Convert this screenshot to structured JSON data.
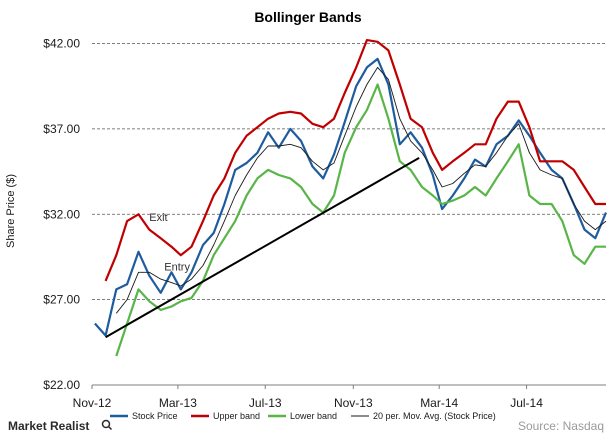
{
  "chart_data": {
    "type": "line",
    "title": "Bollinger Bands",
    "ylabel": "Share Price ($)",
    "xlabel": "",
    "ylim": [
      22,
      42.5
    ],
    "yticks": [
      22,
      27,
      32,
      37,
      42
    ],
    "ytick_labels": [
      "$22.00",
      "$27.00",
      "$32.00",
      "$37.00",
      "$42.00"
    ],
    "grid": true,
    "x_tick_labels": [
      {
        "label": "Nov-12",
        "date": "2012-11-01"
      },
      {
        "label": "Mar-13",
        "date": "2013-03-01"
      },
      {
        "label": "Jul-13",
        "date": "2013-07-01"
      },
      {
        "label": "Nov-13",
        "date": "2013-11-01"
      },
      {
        "label": "Mar-14",
        "date": "2014-03-01"
      },
      {
        "label": "Jul-14",
        "date": "2014-07-01"
      }
    ],
    "x_range": [
      "2012-11-01",
      "2014-10-20"
    ],
    "series": [
      {
        "name": "Stock Price",
        "color": "#1f5c9e",
        "points": [
          [
            "2012-11-05",
            25.6
          ],
          [
            "2012-11-20",
            24.9
          ],
          [
            "2012-12-05",
            27.6
          ],
          [
            "2012-12-20",
            27.9
          ],
          [
            "2013-01-05",
            29.8
          ],
          [
            "2013-01-20",
            28.4
          ],
          [
            "2013-02-05",
            27.4
          ],
          [
            "2013-02-20",
            28.6
          ],
          [
            "2013-03-05",
            27.6
          ],
          [
            "2013-03-20",
            28.6
          ],
          [
            "2013-04-05",
            30.2
          ],
          [
            "2013-04-20",
            30.9
          ],
          [
            "2013-05-05",
            32.6
          ],
          [
            "2013-05-20",
            34.6
          ],
          [
            "2013-06-05",
            35.0
          ],
          [
            "2013-06-20",
            35.6
          ],
          [
            "2013-07-05",
            36.8
          ],
          [
            "2013-07-20",
            35.9
          ],
          [
            "2013-08-05",
            37.0
          ],
          [
            "2013-08-20",
            36.3
          ],
          [
            "2013-09-05",
            34.8
          ],
          [
            "2013-09-20",
            34.1
          ],
          [
            "2013-10-05",
            35.5
          ],
          [
            "2013-10-20",
            37.4
          ],
          [
            "2013-11-05",
            39.5
          ],
          [
            "2013-11-20",
            40.6
          ],
          [
            "2013-12-05",
            41.1
          ],
          [
            "2013-12-20",
            39.6
          ],
          [
            "2014-01-05",
            36.1
          ],
          [
            "2014-01-20",
            36.8
          ],
          [
            "2014-02-05",
            35.9
          ],
          [
            "2014-02-20",
            34.3
          ],
          [
            "2014-03-05",
            32.3
          ],
          [
            "2014-03-20",
            33.1
          ],
          [
            "2014-04-05",
            34.1
          ],
          [
            "2014-04-20",
            35.2
          ],
          [
            "2014-05-05",
            34.8
          ],
          [
            "2014-05-20",
            36.1
          ],
          [
            "2014-06-05",
            36.6
          ],
          [
            "2014-06-20",
            37.5
          ],
          [
            "2014-07-05",
            36.6
          ],
          [
            "2014-07-20",
            35.6
          ],
          [
            "2014-08-05",
            34.6
          ],
          [
            "2014-08-20",
            34.1
          ],
          [
            "2014-09-05",
            32.6
          ],
          [
            "2014-09-20",
            31.1
          ],
          [
            "2014-10-05",
            30.6
          ],
          [
            "2014-10-20",
            32.1
          ]
        ]
      },
      {
        "name": "Upper band",
        "color": "#c00000",
        "points": [
          [
            "2012-11-20",
            28.1
          ],
          [
            "2012-12-05",
            29.6
          ],
          [
            "2012-12-20",
            31.6
          ],
          [
            "2013-01-05",
            32.0
          ],
          [
            "2013-01-20",
            31.1
          ],
          [
            "2013-02-05",
            30.6
          ],
          [
            "2013-02-20",
            30.1
          ],
          [
            "2013-03-05",
            29.6
          ],
          [
            "2013-03-20",
            30.1
          ],
          [
            "2013-04-05",
            31.6
          ],
          [
            "2013-04-20",
            33.1
          ],
          [
            "2013-05-05",
            34.1
          ],
          [
            "2013-05-20",
            35.6
          ],
          [
            "2013-06-05",
            36.6
          ],
          [
            "2013-06-20",
            37.1
          ],
          [
            "2013-07-05",
            37.6
          ],
          [
            "2013-07-20",
            37.9
          ],
          [
            "2013-08-05",
            38.0
          ],
          [
            "2013-08-20",
            37.9
          ],
          [
            "2013-09-05",
            37.3
          ],
          [
            "2013-09-20",
            37.1
          ],
          [
            "2013-10-05",
            37.6
          ],
          [
            "2013-10-20",
            39.1
          ],
          [
            "2013-11-05",
            40.6
          ],
          [
            "2013-11-20",
            42.2
          ],
          [
            "2013-12-05",
            42.1
          ],
          [
            "2013-12-20",
            41.6
          ],
          [
            "2014-01-05",
            39.6
          ],
          [
            "2014-01-20",
            37.6
          ],
          [
            "2014-02-05",
            37.1
          ],
          [
            "2014-02-20",
            35.6
          ],
          [
            "2014-03-05",
            34.6
          ],
          [
            "2014-03-20",
            35.1
          ],
          [
            "2014-04-05",
            35.6
          ],
          [
            "2014-04-20",
            36.1
          ],
          [
            "2014-05-05",
            36.1
          ],
          [
            "2014-05-20",
            37.6
          ],
          [
            "2014-06-05",
            38.6
          ],
          [
            "2014-06-20",
            38.6
          ],
          [
            "2014-07-05",
            37.1
          ],
          [
            "2014-07-20",
            35.1
          ],
          [
            "2014-08-05",
            35.1
          ],
          [
            "2014-08-20",
            35.1
          ],
          [
            "2014-09-05",
            34.6
          ],
          [
            "2014-09-20",
            33.6
          ],
          [
            "2014-10-05",
            32.6
          ],
          [
            "2014-10-20",
            32.6
          ]
        ]
      },
      {
        "name": "Lower band",
        "color": "#58b548",
        "points": [
          [
            "2012-12-05",
            23.7
          ],
          [
            "2012-12-20",
            25.6
          ],
          [
            "2013-01-05",
            27.6
          ],
          [
            "2013-01-20",
            26.9
          ],
          [
            "2013-02-05",
            26.4
          ],
          [
            "2013-02-20",
            26.6
          ],
          [
            "2013-03-05",
            26.9
          ],
          [
            "2013-03-20",
            27.1
          ],
          [
            "2013-04-05",
            28.1
          ],
          [
            "2013-04-20",
            29.6
          ],
          [
            "2013-05-05",
            30.6
          ],
          [
            "2013-05-20",
            31.6
          ],
          [
            "2013-06-05",
            33.1
          ],
          [
            "2013-06-20",
            34.1
          ],
          [
            "2013-07-05",
            34.6
          ],
          [
            "2013-07-20",
            34.3
          ],
          [
            "2013-08-05",
            34.1
          ],
          [
            "2013-08-20",
            33.6
          ],
          [
            "2013-09-05",
            32.6
          ],
          [
            "2013-09-20",
            32.1
          ],
          [
            "2013-10-05",
            33.1
          ],
          [
            "2013-10-20",
            35.6
          ],
          [
            "2013-11-05",
            37.1
          ],
          [
            "2013-11-20",
            38.1
          ],
          [
            "2013-12-05",
            39.6
          ],
          [
            "2013-12-20",
            37.6
          ],
          [
            "2014-01-05",
            35.1
          ],
          [
            "2014-01-20",
            34.6
          ],
          [
            "2014-02-05",
            33.6
          ],
          [
            "2014-02-20",
            33.1
          ],
          [
            "2014-03-05",
            32.6
          ],
          [
            "2014-03-20",
            32.8
          ],
          [
            "2014-04-05",
            33.1
          ],
          [
            "2014-04-20",
            33.6
          ],
          [
            "2014-05-05",
            33.1
          ],
          [
            "2014-05-20",
            34.1
          ],
          [
            "2014-06-05",
            35.1
          ],
          [
            "2014-06-20",
            36.1
          ],
          [
            "2014-07-05",
            33.1
          ],
          [
            "2014-07-20",
            32.6
          ],
          [
            "2014-08-05",
            32.6
          ],
          [
            "2014-08-20",
            31.6
          ],
          [
            "2014-09-05",
            29.6
          ],
          [
            "2014-09-20",
            29.1
          ],
          [
            "2014-10-05",
            30.1
          ],
          [
            "2014-10-20",
            30.1
          ]
        ]
      },
      {
        "name": "20 per. Mov. Avg. (Stock Price)",
        "color": "#1a1a1a",
        "points": [
          [
            "2012-12-05",
            26.2
          ],
          [
            "2012-12-20",
            27.0
          ],
          [
            "2013-01-05",
            28.6
          ],
          [
            "2013-01-20",
            28.6
          ],
          [
            "2013-02-05",
            28.2
          ],
          [
            "2013-02-20",
            28.0
          ],
          [
            "2013-03-05",
            27.8
          ],
          [
            "2013-03-20",
            28.2
          ],
          [
            "2013-04-05",
            29.0
          ],
          [
            "2013-04-20",
            30.2
          ],
          [
            "2013-05-05",
            31.6
          ],
          [
            "2013-05-20",
            33.1
          ],
          [
            "2013-06-05",
            34.3
          ],
          [
            "2013-06-20",
            35.3
          ],
          [
            "2013-07-05",
            36.0
          ],
          [
            "2013-07-20",
            36.0
          ],
          [
            "2013-08-05",
            36.1
          ],
          [
            "2013-08-20",
            35.9
          ],
          [
            "2013-09-05",
            35.1
          ],
          [
            "2013-09-20",
            34.6
          ],
          [
            "2013-10-05",
            35.0
          ],
          [
            "2013-10-20",
            36.6
          ],
          [
            "2013-11-05",
            38.3
          ],
          [
            "2013-11-20",
            39.6
          ],
          [
            "2013-12-05",
            40.6
          ],
          [
            "2013-12-20",
            39.9
          ],
          [
            "2014-01-05",
            37.6
          ],
          [
            "2014-01-20",
            36.3
          ],
          [
            "2014-02-05",
            35.6
          ],
          [
            "2014-02-20",
            34.6
          ],
          [
            "2014-03-05",
            33.6
          ],
          [
            "2014-03-20",
            33.8
          ],
          [
            "2014-04-05",
            34.4
          ],
          [
            "2014-04-20",
            34.9
          ],
          [
            "2014-05-05",
            34.8
          ],
          [
            "2014-05-20",
            35.6
          ],
          [
            "2014-06-05",
            36.6
          ],
          [
            "2014-06-20",
            37.3
          ],
          [
            "2014-07-05",
            35.6
          ],
          [
            "2014-07-20",
            34.6
          ],
          [
            "2014-08-05",
            34.3
          ],
          [
            "2014-08-20",
            34.1
          ],
          [
            "2014-09-05",
            32.6
          ],
          [
            "2014-09-20",
            31.6
          ],
          [
            "2014-10-05",
            31.1
          ],
          [
            "2014-10-20",
            31.6
          ]
        ]
      }
    ],
    "trend_line": {
      "color": "#000000",
      "from": [
        "2012-11-20",
        24.8
      ],
      "to": [
        "2014-02-01",
        35.3
      ]
    },
    "annotations": [
      {
        "text": "Exit",
        "date": "2013-01-20",
        "value": 31.6
      },
      {
        "text": "Entry",
        "date": "2013-02-10",
        "value": 28.7
      }
    ],
    "legend_position": "bottom"
  },
  "footer": {
    "brand": "Market Realist",
    "source": "Source: Nasdaq"
  }
}
